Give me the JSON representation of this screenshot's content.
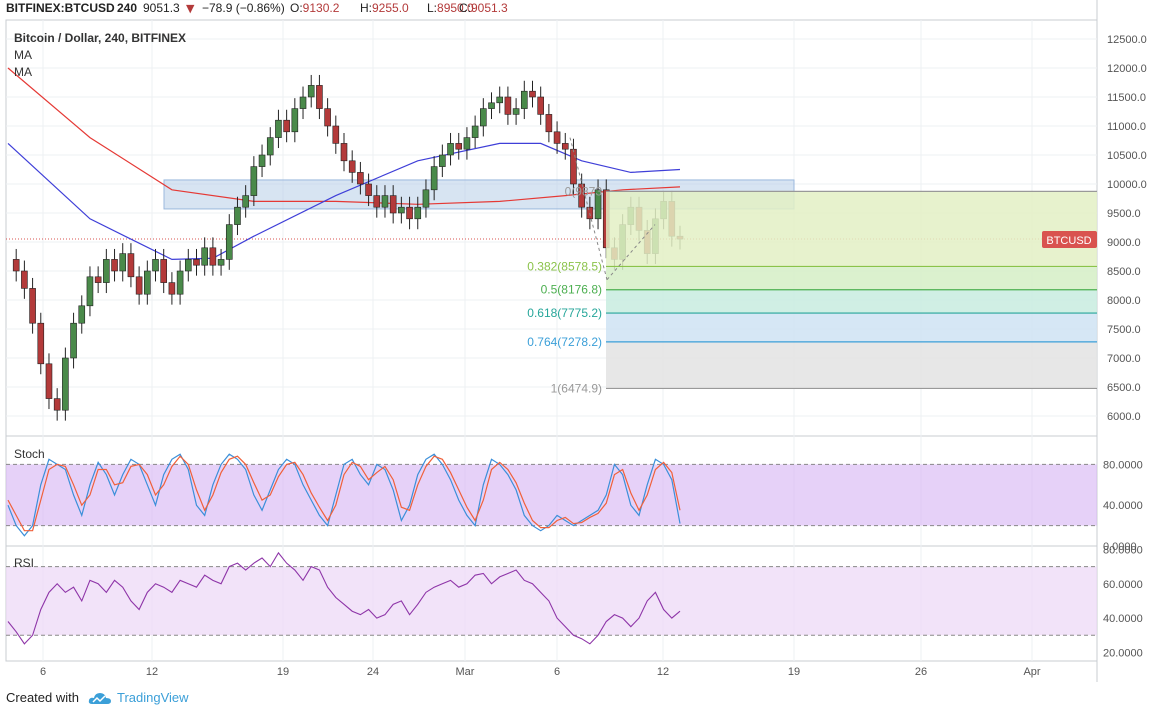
{
  "header": {
    "symbol": "BITFINEX:BTCUSD",
    "interval": "240",
    "last": "9051.3",
    "change": "−78.9 (−0.86%)",
    "o_label": "O:",
    "o": "9130.2",
    "h_label": "H:",
    "h": "9255.0",
    "l_label": "L:",
    "l": "8950.0",
    "c_label": "C:",
    "c": "9051.3",
    "title": "Bitcoin / Dollar, 240, BITFINEX",
    "ma1": "MA",
    "ma2": "MA"
  },
  "price_tag": "BTCUSD",
  "footer": {
    "created": "Created with",
    "brand": "TradingView"
  },
  "colors": {
    "up": "#4a8a4a",
    "down": "#b33a3a",
    "ma_red": "#e53935",
    "ma_blue": "#3f3fd8",
    "stoch_k": "#3b8fd9",
    "stoch_d": "#f0603a",
    "rsi": "#8e35a8",
    "tag_bg": "#d9534f"
  },
  "chart_data": [
    {
      "type": "candlestick",
      "title": "Bitcoin / Dollar, 240, BITFINEX",
      "ylim": [
        5600,
        12750
      ],
      "y_ticks": [
        "12500.0",
        "12000.0",
        "11500.0",
        "11000.0",
        "10500.0",
        "10000.0",
        "9500.0",
        "9000.0",
        "8500.0",
        "8000.0",
        "7500.0",
        "7000.0",
        "6500.0",
        "6000.0"
      ],
      "x_ticks": [
        "6",
        "12",
        "19",
        "24",
        "Mar",
        "6",
        "12",
        "19",
        "26",
        "Apr"
      ],
      "close_path": [
        [
          0,
          8700
        ],
        [
          1,
          8500
        ],
        [
          2,
          8200
        ],
        [
          3,
          7600
        ],
        [
          4,
          6900
        ],
        [
          5,
          6300
        ],
        [
          6,
          6100
        ],
        [
          7,
          7000
        ],
        [
          8,
          7600
        ],
        [
          9,
          7900
        ],
        [
          10,
          8400
        ],
        [
          11,
          8300
        ],
        [
          12,
          8700
        ],
        [
          13,
          8500
        ],
        [
          14,
          8800
        ],
        [
          15,
          8400
        ],
        [
          16,
          8100
        ],
        [
          17,
          8500
        ],
        [
          18,
          8700
        ],
        [
          19,
          8300
        ],
        [
          20,
          8100
        ],
        [
          21,
          8500
        ],
        [
          22,
          8700
        ],
        [
          23,
          8600
        ],
        [
          24,
          8900
        ],
        [
          25,
          8600
        ],
        [
          26,
          8700
        ],
        [
          27,
          9300
        ],
        [
          28,
          9600
        ],
        [
          29,
          9800
        ],
        [
          30,
          10300
        ],
        [
          31,
          10500
        ],
        [
          32,
          10800
        ],
        [
          33,
          11100
        ],
        [
          34,
          10900
        ],
        [
          35,
          11300
        ],
        [
          36,
          11500
        ],
        [
          37,
          11700
        ],
        [
          38,
          11300
        ],
        [
          39,
          11000
        ],
        [
          40,
          10700
        ],
        [
          41,
          10400
        ],
        [
          42,
          10200
        ],
        [
          43,
          10000
        ],
        [
          44,
          9800
        ],
        [
          45,
          9600
        ],
        [
          46,
          9800
        ],
        [
          47,
          9500
        ],
        [
          48,
          9600
        ],
        [
          49,
          9400
        ],
        [
          50,
          9600
        ],
        [
          51,
          9900
        ],
        [
          52,
          10300
        ],
        [
          53,
          10500
        ],
        [
          54,
          10700
        ],
        [
          55,
          10600
        ],
        [
          56,
          10800
        ],
        [
          57,
          11000
        ],
        [
          58,
          11300
        ],
        [
          59,
          11400
        ],
        [
          60,
          11500
        ],
        [
          61,
          11200
        ],
        [
          62,
          11300
        ],
        [
          63,
          11600
        ],
        [
          64,
          11500
        ],
        [
          65,
          11200
        ],
        [
          66,
          10900
        ],
        [
          67,
          10700
        ],
        [
          68,
          10600
        ],
        [
          69,
          10000
        ],
        [
          70,
          9600
        ],
        [
          71,
          9400
        ],
        [
          72,
          9900
        ],
        [
          73,
          8900
        ],
        [
          74,
          8700
        ],
        [
          75,
          9300
        ],
        [
          76,
          9600
        ],
        [
          77,
          9200
        ],
        [
          78,
          8800
        ],
        [
          79,
          9400
        ],
        [
          80,
          9700
        ],
        [
          81,
          9100
        ],
        [
          82,
          9051
        ]
      ],
      "series": [
        {
          "name": "MA",
          "color": "#e53935",
          "values": [
            [
              0,
              12000
            ],
            [
              10,
              10800
            ],
            [
              20,
              9900
            ],
            [
              30,
              9700
            ],
            [
              40,
              9700
            ],
            [
              50,
              9650
            ],
            [
              60,
              9700
            ],
            [
              68,
              9800
            ],
            [
              75,
              9900
            ],
            [
              82,
              9950
            ]
          ]
        },
        {
          "name": "MA",
          "color": "#3f3fd8",
          "values": [
            [
              0,
              10700
            ],
            [
              10,
              9400
            ],
            [
              20,
              8700
            ],
            [
              25,
              8720
            ],
            [
              30,
              9100
            ],
            [
              40,
              9800
            ],
            [
              50,
              10400
            ],
            [
              60,
              10700
            ],
            [
              65,
              10700
            ],
            [
              70,
              10400
            ],
            [
              76,
              10200
            ],
            [
              82,
              10250
            ]
          ]
        }
      ],
      "fib_levels": [
        {
          "label": "0(9873",
          "ratio": 0,
          "value": 9873,
          "color": "#999999"
        },
        {
          "label": "0.382(8578.5)",
          "ratio": 0.382,
          "value": 8578.5,
          "color": "#8bc34a"
        },
        {
          "label": "0.5(8176.8)",
          "ratio": 0.5,
          "value": 8176.8,
          "color": "#4caf50"
        },
        {
          "label": "0.618(7775.2)",
          "ratio": 0.618,
          "value": 7775.2,
          "color": "#26a69a"
        },
        {
          "label": "0.764(7278.2)",
          "ratio": 0.764,
          "value": 7278.2,
          "color": "#3b9fd8"
        },
        {
          "label": "1(6474.9)",
          "ratio": 1,
          "value": 6474.9,
          "color": "#999999"
        }
      ],
      "resistance_zone": [
        9570,
        10070
      ],
      "last_price": 9051.3
    },
    {
      "type": "line",
      "title": "Stoch",
      "ylim": [
        0,
        100
      ],
      "y_ticks": [
        "80.0000",
        "40.0000",
        "0.0000"
      ],
      "bands": [
        20,
        80
      ],
      "series": [
        {
          "name": "K",
          "color": "#3b8fd9",
          "values": [
            40,
            20,
            10,
            20,
            60,
            85,
            80,
            75,
            50,
            30,
            60,
            82,
            70,
            50,
            70,
            85,
            80,
            60,
            40,
            70,
            85,
            90,
            75,
            40,
            30,
            60,
            80,
            90,
            85,
            75,
            50,
            35,
            55,
            75,
            85,
            80,
            60,
            45,
            30,
            20,
            50,
            80,
            85,
            70,
            60,
            80,
            75,
            55,
            25,
            40,
            70,
            85,
            90,
            80,
            65,
            45,
            30,
            20,
            60,
            85,
            80,
            70,
            55,
            30,
            20,
            15,
            20,
            30,
            25,
            20,
            25,
            30,
            35,
            50,
            80,
            70,
            40,
            30,
            60,
            85,
            80,
            65,
            22
          ]
        },
        {
          "name": "D",
          "color": "#f0603a",
          "values": [
            45,
            30,
            15,
            15,
            45,
            75,
            80,
            78,
            60,
            40,
            50,
            75,
            75,
            60,
            62,
            78,
            80,
            70,
            50,
            60,
            78,
            88,
            80,
            55,
            35,
            50,
            72,
            85,
            88,
            80,
            62,
            45,
            50,
            68,
            80,
            82,
            70,
            52,
            38,
            25,
            40,
            70,
            82,
            78,
            65,
            72,
            78,
            65,
            38,
            35,
            60,
            78,
            88,
            85,
            72,
            55,
            38,
            25,
            45,
            75,
            82,
            75,
            62,
            42,
            25,
            18,
            18,
            25,
            28,
            22,
            23,
            28,
            32,
            42,
            70,
            75,
            52,
            35,
            50,
            75,
            82,
            72,
            35
          ]
        }
      ]
    },
    {
      "type": "line",
      "title": "RSI",
      "ylim": [
        15,
        82
      ],
      "y_ticks": [
        "80.0000",
        "60.0000",
        "40.0000",
        "20.0000"
      ],
      "bands": [
        30,
        70
      ],
      "series": [
        {
          "name": "RSI",
          "color": "#8e35a8",
          "values": [
            38,
            32,
            25,
            30,
            45,
            55,
            60,
            55,
            58,
            50,
            62,
            60,
            55,
            62,
            58,
            50,
            45,
            55,
            60,
            58,
            55,
            62,
            60,
            58,
            65,
            62,
            60,
            70,
            72,
            68,
            72,
            75,
            70,
            78,
            72,
            68,
            62,
            70,
            68,
            58,
            52,
            48,
            44,
            42,
            45,
            40,
            42,
            48,
            50,
            42,
            48,
            55,
            58,
            60,
            62,
            58,
            60,
            65,
            66,
            60,
            64,
            66,
            68,
            62,
            60,
            55,
            50,
            40,
            35,
            30,
            28,
            25,
            30,
            38,
            42,
            40,
            35,
            40,
            50,
            55,
            45,
            40,
            44
          ]
        }
      ]
    }
  ]
}
